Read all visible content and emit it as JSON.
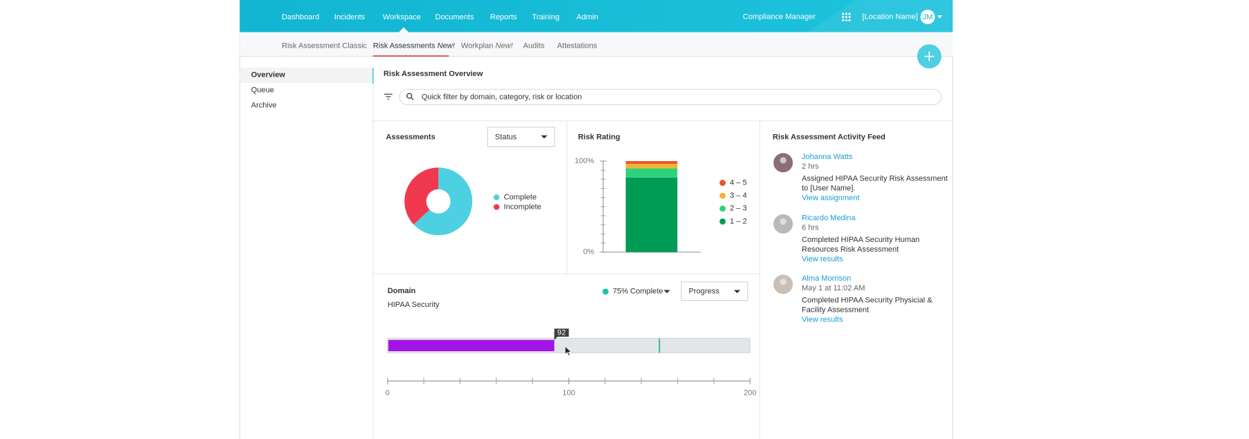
{
  "nav": {
    "items": [
      "Dashboard",
      "Incidents",
      "Workspace",
      "Documents",
      "Reports",
      "Training",
      "Admin"
    ],
    "app_name": "Compliance Manager",
    "location": "[Location Name]",
    "user_initials": "JM"
  },
  "subnav": [
    {
      "label": "Risk Assessment Classic"
    },
    {
      "label": "Risk Assessments",
      "badge": "New!"
    },
    {
      "label": "Workplan",
      "badge": "New!"
    },
    {
      "label": "Audits"
    },
    {
      "label": "Attestations"
    }
  ],
  "sidebar": [
    "Overview",
    "Queue",
    "Archive"
  ],
  "page": {
    "title": "Risk Assessment Overview",
    "search_placeholder": "Quick filter by domain, category, risk or location"
  },
  "chart_data": [
    {
      "type": "pie",
      "donut": true,
      "title": "Assessments",
      "dropdown": "Status",
      "categories": [
        "Complete",
        "Incomplete"
      ],
      "values": [
        63,
        37
      ],
      "colors": [
        "#4dd0e1",
        "#f0394f"
      ]
    },
    {
      "type": "stacked_bar",
      "title": "Risk Rating",
      "categories": [
        null
      ],
      "series": [
        {
          "name": "1 – 2",
          "color": "#009b55",
          "values": [
            82
          ]
        },
        {
          "name": "2 – 3",
          "color": "#2ed27d",
          "values": [
            10
          ]
        },
        {
          "name": "3 – 4",
          "color": "#f5b335",
          "values": [
            5
          ]
        },
        {
          "name": "4 – 5",
          "color": "#e8572a",
          "values": [
            3
          ]
        }
      ],
      "ylim": [
        0,
        100
      ],
      "yticks": [
        {
          "value": 0,
          "label": "0%"
        },
        {
          "value": 100,
          "label": "100%"
        }
      ],
      "y_minor_ticks": [
        10,
        20,
        30,
        40,
        50,
        60,
        70,
        80,
        90
      ],
      "legend": "right"
    },
    {
      "type": "progress_bar",
      "title": "Domain",
      "subtitle": "HIPAA Security",
      "legend_text": "75% Complete",
      "legend_color": "#1fc2a7",
      "dropdown": "Progress",
      "values": [
        92
      ],
      "target": 150,
      "color": "#a214e8",
      "track_color": "#e2e6e9",
      "target_color": "#1fb29a",
      "xlim": [
        0,
        200
      ],
      "xticks": [
        0,
        100,
        200
      ],
      "x_minor_ticks": [
        20,
        40,
        60,
        80,
        120,
        140,
        160,
        180
      ]
    }
  ],
  "activity_feed": {
    "title": "Risk Assessment Activity Feed",
    "items": [
      {
        "name": "Johanna Watts",
        "time": "2 hrs",
        "text": [
          "Assigned HIPAA Security Risk Assessment",
          "to [User Name]."
        ],
        "link": "View assignment"
      },
      {
        "name": "Ricardo Medina",
        "time": "6 hrs",
        "text": [
          "Completed HIPAA Security Human",
          "Resources Risk Assessment"
        ],
        "link": "View results"
      },
      {
        "name": "Alma Morrison",
        "time": "May 1 at 11:02 AM",
        "text": [
          "Completed HIPAA Security Physicial &",
          "Facility Assessment"
        ],
        "link": "View results"
      }
    ]
  }
}
